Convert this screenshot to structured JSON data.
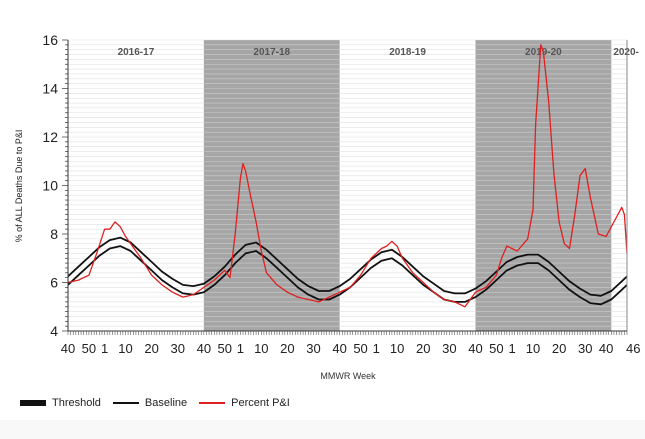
{
  "chart_data": {
    "type": "line",
    "title": "",
    "xlabel": "MMWR Week",
    "ylabel": "% of ALL Deaths Due to P&I",
    "ylim": [
      4,
      16
    ],
    "yticks": [
      4,
      6,
      8,
      10,
      12,
      14,
      16
    ],
    "grid": "horizontal minor lines",
    "legend_position": "bottom-left",
    "seasons": [
      {
        "label": "2016-17",
        "shaded": false
      },
      {
        "label": "2017-18",
        "shaded": true
      },
      {
        "label": "2018-19",
        "shaded": false
      },
      {
        "label": "2019-20",
        "shaded": true
      },
      {
        "label": "2020-",
        "shaded": false
      }
    ],
    "xticks": [
      {
        "w": 0,
        "label": "40"
      },
      {
        "w": 10,
        "label": "50"
      },
      {
        "w": 13,
        "label": "1"
      },
      {
        "w": 22,
        "label": "10"
      },
      {
        "w": 32,
        "label": "20"
      },
      {
        "w": 42,
        "label": "30"
      },
      {
        "w": 52,
        "label": "40"
      },
      {
        "w": 62,
        "label": "50"
      },
      {
        "w": 65,
        "label": "1"
      },
      {
        "w": 74,
        "label": "10"
      },
      {
        "w": 84,
        "label": "20"
      },
      {
        "w": 94,
        "label": "30"
      },
      {
        "w": 104,
        "label": "40"
      },
      {
        "w": 114,
        "label": "50"
      },
      {
        "w": 117,
        "label": "1"
      },
      {
        "w": 126,
        "label": "10"
      },
      {
        "w": 136,
        "label": "20"
      },
      {
        "w": 146,
        "label": "30"
      },
      {
        "w": 156,
        "label": "40"
      },
      {
        "w": 166,
        "label": "50"
      },
      {
        "w": 169,
        "label": "1"
      },
      {
        "w": 178,
        "label": "10"
      },
      {
        "w": 188,
        "label": "20"
      },
      {
        "w": 198,
        "label": "30"
      },
      {
        "w": 208,
        "label": "40"
      },
      {
        "w": 214,
        "label": "46"
      }
    ],
    "series": [
      {
        "name": "Threshold",
        "color": "#111111",
        "weeks": [
          0,
          4,
          8,
          12,
          16,
          20,
          24,
          28,
          32,
          36,
          40,
          44,
          48,
          52,
          56,
          60,
          64,
          68,
          72,
          76,
          80,
          84,
          88,
          92,
          96,
          100,
          104,
          108,
          112,
          116,
          120,
          124,
          128,
          132,
          136,
          140,
          144,
          148,
          152,
          156,
          160,
          164,
          168,
          172,
          176,
          180,
          184,
          188,
          192,
          196,
          200,
          204,
          208,
          212,
          214
        ],
        "values": [
          6.25,
          6.65,
          7.05,
          7.45,
          7.75,
          7.85,
          7.65,
          7.25,
          6.85,
          6.45,
          6.15,
          5.9,
          5.85,
          5.95,
          6.25,
          6.65,
          7.15,
          7.55,
          7.65,
          7.35,
          6.95,
          6.55,
          6.15,
          5.85,
          5.65,
          5.65,
          5.85,
          6.15,
          6.55,
          6.95,
          7.25,
          7.35,
          7.05,
          6.65,
          6.25,
          5.95,
          5.65,
          5.55,
          5.55,
          5.75,
          6.05,
          6.45,
          6.85,
          7.05,
          7.15,
          7.15,
          6.85,
          6.45,
          6.05,
          5.75,
          5.5,
          5.45,
          5.65,
          6.05,
          6.25
        ]
      },
      {
        "name": "Baseline",
        "color": "#111111",
        "weeks": [
          0,
          4,
          8,
          12,
          16,
          20,
          24,
          28,
          32,
          36,
          40,
          44,
          48,
          52,
          56,
          60,
          64,
          68,
          72,
          76,
          80,
          84,
          88,
          92,
          96,
          100,
          104,
          108,
          112,
          116,
          120,
          124,
          128,
          132,
          136,
          140,
          144,
          148,
          152,
          156,
          160,
          164,
          168,
          172,
          176,
          180,
          184,
          188,
          192,
          196,
          200,
          204,
          208,
          212,
          214
        ],
        "values": [
          5.9,
          6.3,
          6.7,
          7.1,
          7.4,
          7.5,
          7.3,
          6.9,
          6.5,
          6.1,
          5.8,
          5.55,
          5.5,
          5.6,
          5.9,
          6.3,
          6.8,
          7.2,
          7.3,
          7.0,
          6.6,
          6.2,
          5.8,
          5.5,
          5.3,
          5.3,
          5.5,
          5.8,
          6.2,
          6.6,
          6.9,
          7.0,
          6.7,
          6.3,
          5.9,
          5.6,
          5.3,
          5.2,
          5.2,
          5.4,
          5.7,
          6.1,
          6.5,
          6.7,
          6.8,
          6.8,
          6.5,
          6.1,
          5.7,
          5.4,
          5.15,
          5.1,
          5.3,
          5.7,
          5.9
        ]
      },
      {
        "name": "Percent P&I",
        "color": "#e02020",
        "weeks": [
          0,
          4,
          8,
          11,
          14,
          16,
          18,
          20,
          22,
          24,
          28,
          32,
          36,
          40,
          44,
          48,
          52,
          56,
          60,
          62,
          64,
          66,
          67,
          68,
          70,
          72,
          74,
          76,
          80,
          84,
          88,
          92,
          96,
          100,
          104,
          108,
          112,
          116,
          120,
          122,
          124,
          126,
          128,
          132,
          136,
          140,
          144,
          148,
          152,
          156,
          160,
          164,
          166,
          168,
          172,
          176,
          178,
          179,
          181,
          182,
          184,
          186,
          188,
          190,
          192,
          194,
          196,
          198,
          200,
          203,
          206,
          210,
          212,
          213,
          214
        ],
        "values": [
          6.0,
          6.1,
          6.3,
          7.2,
          8.2,
          8.2,
          8.5,
          8.3,
          7.9,
          7.6,
          7.0,
          6.3,
          5.9,
          5.6,
          5.4,
          5.5,
          5.8,
          6.1,
          6.5,
          6.2,
          8.0,
          10.3,
          10.9,
          10.6,
          9.5,
          8.5,
          7.3,
          6.4,
          5.9,
          5.6,
          5.4,
          5.3,
          5.2,
          5.4,
          5.6,
          5.8,
          6.3,
          7.0,
          7.4,
          7.5,
          7.7,
          7.5,
          7.0,
          6.4,
          6.0,
          5.6,
          5.3,
          5.2,
          5.0,
          5.6,
          5.8,
          6.3,
          7.0,
          7.5,
          7.3,
          7.8,
          9.0,
          12.5,
          15.8,
          15.5,
          13.5,
          10.5,
          8.5,
          7.6,
          7.4,
          8.8,
          10.4,
          10.7,
          9.5,
          8.0,
          7.9,
          8.7,
          9.1,
          8.8,
          7.2
        ]
      }
    ]
  }
}
